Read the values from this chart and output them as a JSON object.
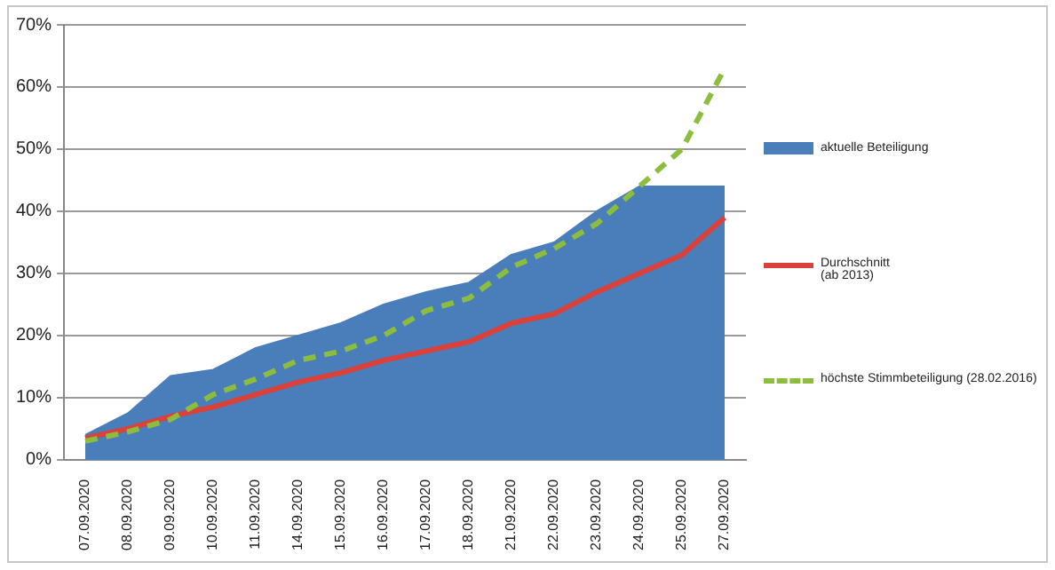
{
  "chart_data": {
    "type": "area",
    "categories": [
      "07.09.2020",
      "08.09.2020",
      "09.09.2020",
      "10.09.2020",
      "11.09.2020",
      "14.09.2020",
      "15.09.2020",
      "16.09.2020",
      "17.09.2020",
      "18.09.2020",
      "21.09.2020",
      "22.09.2020",
      "23.09.2020",
      "24.09.2020",
      "25.09.2020",
      "27.09.2020"
    ],
    "series": [
      {
        "name": "aktuelle Beteiligung",
        "color": "#4a7ebb",
        "values": [
          4,
          7.5,
          13.5,
          14.5,
          18,
          20,
          22,
          25,
          27,
          28.5,
          33,
          35,
          40,
          44,
          44,
          44
        ]
      },
      {
        "name": "Durchschnitt\n(ab 2013)",
        "type": "line",
        "color": "#d9413a",
        "line_style": "solid",
        "values": [
          3.5,
          5,
          7,
          8.5,
          10.5,
          12.5,
          14,
          16,
          17.5,
          19,
          22,
          23.5,
          27,
          30,
          33,
          39
        ]
      },
      {
        "name": "höchste Stimmbeteiligung (28.02.2016)",
        "type": "line",
        "color": "#8cbd3f",
        "line_style": "dashed",
        "values": [
          3,
          4.5,
          6.5,
          10.5,
          13,
          16,
          17.5,
          20,
          24,
          26,
          31,
          34,
          38,
          44,
          50,
          63
        ]
      }
    ],
    "ylim": [
      0,
      70
    ],
    "yticks": [
      {
        "value": 0,
        "label": "0%"
      },
      {
        "value": 10,
        "label": "10%"
      },
      {
        "value": 20,
        "label": "20%"
      },
      {
        "value": 30,
        "label": "30%"
      },
      {
        "value": 40,
        "label": "40%"
      },
      {
        "value": 50,
        "label": "50%"
      },
      {
        "value": 60,
        "label": "60%"
      },
      {
        "value": 70,
        "label": "70%"
      }
    ],
    "grid": "y",
    "legend": "right",
    "marker": "none"
  }
}
